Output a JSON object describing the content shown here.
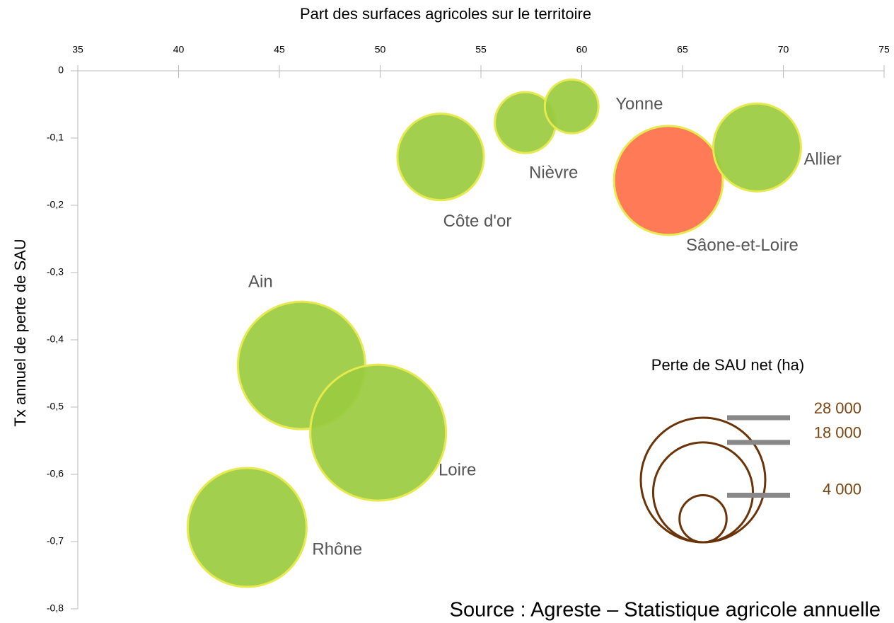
{
  "chart_data": {
    "type": "bubble",
    "title": "Part des surfaces agricoles sur le territoire",
    "y_label": "Tx annuel de perte de SAU",
    "source": "Source : Agreste – Statistique agricole annuelle",
    "series": [
      {
        "names": [
          "Côte d'or",
          "Nièvre",
          "Yonne",
          "Sâone-et-Loire",
          "Allier",
          "Ain",
          "Loire",
          "Rhône"
        ],
        "x": [
          53.0,
          57.2,
          59.5,
          64.3,
          68.7,
          46.1,
          49.9,
          43.4
        ],
        "values": [
          -0.128,
          -0.077,
          -0.053,
          -0.163,
          -0.114,
          -0.438,
          -0.538,
          -0.679
        ],
        "sizes": [
          13500,
          6700,
          5200,
          21400,
          13900,
          29300,
          33300,
          25500
        ],
        "colors": [
          "#9acb3f",
          "#9acb3f",
          "#9acb3f",
          "#ff704a",
          "#9acb3f",
          "#9acb3f",
          "#9acb3f",
          "#9acb3f"
        ]
      }
    ],
    "xlim": [
      35,
      75
    ],
    "xticks": [
      35,
      40,
      45,
      50,
      55,
      60,
      65,
      70,
      75
    ],
    "ylim": [
      -0.8,
      0
    ],
    "yticks": [
      0,
      {
        "value": -0.1,
        "label": "-0,1"
      },
      {
        "value": -0.2,
        "label": "-0,2"
      },
      {
        "value": -0.3,
        "label": "-0,3"
      },
      {
        "value": -0.4,
        "label": "-0,4"
      },
      {
        "value": -0.5,
        "label": "-0,5"
      },
      {
        "value": -0.6,
        "label": "-0,6"
      },
      {
        "value": -0.7,
        "label": "-0,7"
      },
      {
        "value": -0.8,
        "label": "-0,8"
      }
    ],
    "size_legend_title": "Perte de SAU net (ha)",
    "size_legend": [
      {
        "value": 28000,
        "label": "28 000"
      },
      {
        "value": 18000,
        "label": "18 000"
      },
      {
        "value": 4000,
        "label": "4 000"
      }
    ]
  }
}
